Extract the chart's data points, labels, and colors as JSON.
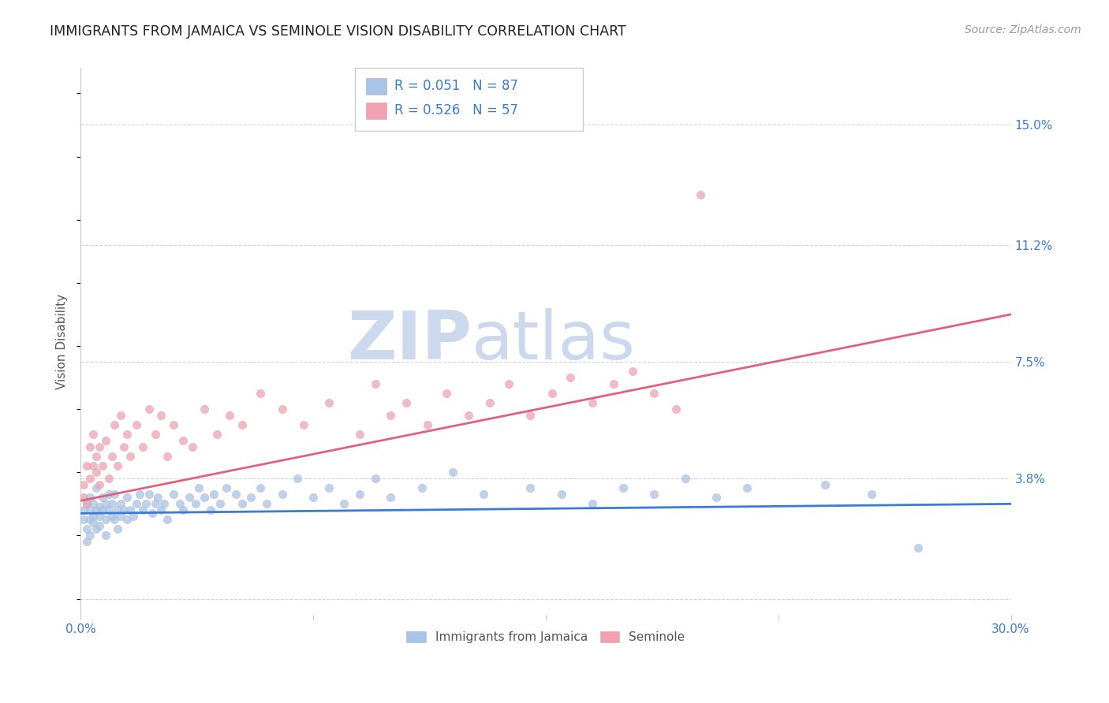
{
  "title": "IMMIGRANTS FROM JAMAICA VS SEMINOLE VISION DISABILITY CORRELATION CHART",
  "source": "Source: ZipAtlas.com",
  "ylabel": "Vision Disability",
  "xlim": [
    0.0,
    0.3
  ],
  "ylim": [
    -0.005,
    0.168
  ],
  "yticks": [
    0.0,
    0.038,
    0.075,
    0.112,
    0.15
  ],
  "ytick_labels": [
    "",
    "3.8%",
    "7.5%",
    "11.2%",
    "15.0%"
  ],
  "xticks": [
    0.0,
    0.075,
    0.15,
    0.225,
    0.3
  ],
  "xtick_labels": [
    "0.0%",
    "",
    "",
    "",
    "30.0%"
  ],
  "grid_color": "#c8c8c8",
  "background_color": "#ffffff",
  "title_color": "#222222",
  "title_fontsize": 12.5,
  "source_color": "#999999",
  "axis_label_color": "#555555",
  "tick_label_color": "#3a7bd5",
  "legend_r1": "R = 0.051",
  "legend_n1": "N = 87",
  "legend_r2": "R = 0.526",
  "legend_n2": "N = 57",
  "legend_color_blue": "#a8c4e8",
  "legend_color_pink": "#f4a0b0",
  "watermark_zip": "ZIP",
  "watermark_atlas": "atlas",
  "watermark_color": "#ccd8ee",
  "blue_line_x": [
    0.0,
    0.3
  ],
  "blue_line_y": [
    0.027,
    0.03
  ],
  "pink_line_x": [
    0.0,
    0.3
  ],
  "pink_line_y": [
    0.031,
    0.09
  ],
  "blue_line_color": "#3a7bd5",
  "pink_line_color": "#e06080",
  "blue_dot_color": "#a8c4e8",
  "pink_dot_color": "#f4a0b0",
  "dot_size": 55,
  "dot_alpha": 0.75,
  "dot_edge_color": "#bbbbbb",
  "dot_linewidth": 0.5,
  "blue_scatter_x": [
    0.001,
    0.001,
    0.002,
    0.002,
    0.002,
    0.003,
    0.003,
    0.003,
    0.003,
    0.004,
    0.004,
    0.004,
    0.005,
    0.005,
    0.005,
    0.006,
    0.006,
    0.006,
    0.007,
    0.007,
    0.008,
    0.008,
    0.008,
    0.009,
    0.009,
    0.01,
    0.01,
    0.011,
    0.011,
    0.012,
    0.012,
    0.013,
    0.013,
    0.014,
    0.015,
    0.015,
    0.016,
    0.017,
    0.018,
    0.019,
    0.02,
    0.021,
    0.022,
    0.023,
    0.024,
    0.025,
    0.026,
    0.027,
    0.028,
    0.03,
    0.032,
    0.033,
    0.035,
    0.037,
    0.038,
    0.04,
    0.042,
    0.043,
    0.045,
    0.047,
    0.05,
    0.052,
    0.055,
    0.058,
    0.06,
    0.065,
    0.07,
    0.075,
    0.08,
    0.085,
    0.09,
    0.095,
    0.1,
    0.11,
    0.12,
    0.13,
    0.145,
    0.155,
    0.165,
    0.175,
    0.185,
    0.195,
    0.205,
    0.215,
    0.24,
    0.255,
    0.27
  ],
  "blue_scatter_y": [
    0.025,
    0.028,
    0.022,
    0.03,
    0.018,
    0.025,
    0.028,
    0.02,
    0.032,
    0.026,
    0.024,
    0.03,
    0.028,
    0.022,
    0.035,
    0.026,
    0.029,
    0.023,
    0.028,
    0.032,
    0.025,
    0.03,
    0.02,
    0.028,
    0.033,
    0.026,
    0.03,
    0.025,
    0.033,
    0.028,
    0.022,
    0.03,
    0.026,
    0.028,
    0.025,
    0.032,
    0.028,
    0.026,
    0.03,
    0.033,
    0.028,
    0.03,
    0.033,
    0.027,
    0.03,
    0.032,
    0.028,
    0.03,
    0.025,
    0.033,
    0.03,
    0.028,
    0.032,
    0.03,
    0.035,
    0.032,
    0.028,
    0.033,
    0.03,
    0.035,
    0.033,
    0.03,
    0.032,
    0.035,
    0.03,
    0.033,
    0.038,
    0.032,
    0.035,
    0.03,
    0.033,
    0.038,
    0.032,
    0.035,
    0.04,
    0.033,
    0.035,
    0.033,
    0.03,
    0.035,
    0.033,
    0.038,
    0.032,
    0.035,
    0.036,
    0.033,
    0.016
  ],
  "pink_scatter_x": [
    0.001,
    0.001,
    0.002,
    0.002,
    0.003,
    0.003,
    0.004,
    0.004,
    0.005,
    0.005,
    0.006,
    0.006,
    0.007,
    0.008,
    0.009,
    0.01,
    0.011,
    0.012,
    0.013,
    0.014,
    0.015,
    0.016,
    0.018,
    0.02,
    0.022,
    0.024,
    0.026,
    0.028,
    0.03,
    0.033,
    0.036,
    0.04,
    0.044,
    0.048,
    0.052,
    0.058,
    0.065,
    0.072,
    0.08,
    0.09,
    0.095,
    0.1,
    0.105,
    0.112,
    0.118,
    0.125,
    0.132,
    0.138,
    0.145,
    0.152,
    0.158,
    0.165,
    0.172,
    0.178,
    0.185,
    0.192,
    0.2
  ],
  "pink_scatter_y": [
    0.032,
    0.036,
    0.03,
    0.042,
    0.038,
    0.048,
    0.042,
    0.052,
    0.04,
    0.045,
    0.048,
    0.036,
    0.042,
    0.05,
    0.038,
    0.045,
    0.055,
    0.042,
    0.058,
    0.048,
    0.052,
    0.045,
    0.055,
    0.048,
    0.06,
    0.052,
    0.058,
    0.045,
    0.055,
    0.05,
    0.048,
    0.06,
    0.052,
    0.058,
    0.055,
    0.065,
    0.06,
    0.055,
    0.062,
    0.052,
    0.068,
    0.058,
    0.062,
    0.055,
    0.065,
    0.058,
    0.062,
    0.068,
    0.058,
    0.065,
    0.07,
    0.062,
    0.068,
    0.072,
    0.065,
    0.06,
    0.128
  ]
}
